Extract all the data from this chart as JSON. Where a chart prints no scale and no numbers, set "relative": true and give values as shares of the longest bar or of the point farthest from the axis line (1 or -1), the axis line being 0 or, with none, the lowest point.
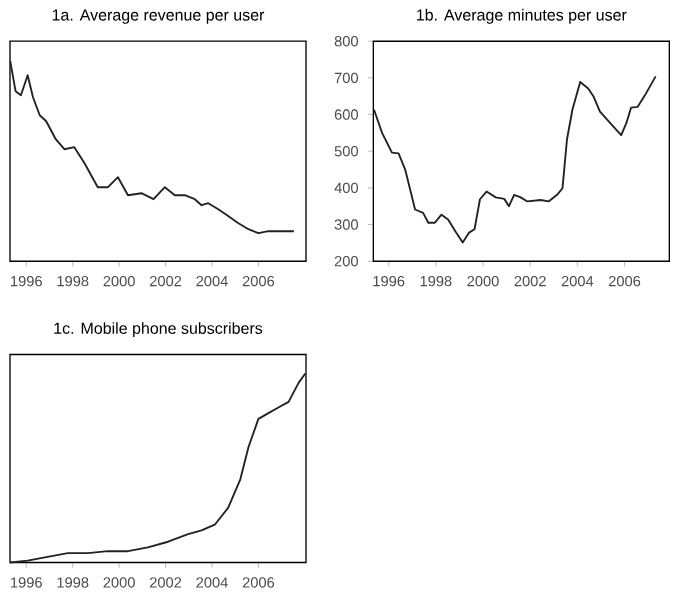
{
  "chart_data": [
    {
      "type": "line",
      "title": "1a. Average revenue per user",
      "relative": true,
      "xlim": [
        1995.3,
        2008.05
      ],
      "xticks": [
        1996,
        1998,
        2000,
        2002,
        2004,
        2006
      ],
      "x": [
        1995.31,
        1995.54,
        1995.77,
        1996.06,
        1996.29,
        1996.58,
        1996.86,
        1997.27,
        1997.64,
        1998.07,
        1998.51,
        1999.08,
        1999.52,
        1999.95,
        2000.38,
        2000.96,
        2001.48,
        2001.97,
        2002.4,
        2002.83,
        2003.26,
        2003.55,
        2003.84,
        2004.27,
        2004.65,
        2005.14,
        2005.57,
        2006.0,
        2006.43,
        2007.01,
        2007.53
      ],
      "series": [
        {
          "color": "#222222",
          "values": [
            1.0,
            0.85,
            0.83,
            0.93,
            0.82,
            0.73,
            0.7,
            0.61,
            0.56,
            0.57,
            0.49,
            0.37,
            0.37,
            0.42,
            0.33,
            0.34,
            0.31,
            0.37,
            0.33,
            0.33,
            0.31,
            0.28,
            0.29,
            0.26,
            0.23,
            0.19,
            0.16,
            0.14,
            0.15,
            0.15,
            0.15
          ]
        }
      ]
    },
    {
      "type": "line",
      "title": "1b. Average minutes per user",
      "xlim": [
        1995.35,
        2007.9
      ],
      "xticks": [
        1996,
        1998,
        2000,
        2002,
        2004,
        2006
      ],
      "ylim": [
        200,
        800
      ],
      "yticks": [
        200,
        300,
        400,
        500,
        600,
        700,
        800
      ],
      "x": [
        1995.38,
        1995.72,
        1996.14,
        1996.42,
        1996.7,
        1997.12,
        1997.46,
        1997.68,
        1997.96,
        1998.24,
        1998.52,
        1998.86,
        1999.14,
        1999.41,
        1999.64,
        1999.87,
        2000.15,
        2000.54,
        2000.9,
        2001.1,
        2001.32,
        2001.6,
        2001.88,
        2002.44,
        2002.78,
        2003.14,
        2003.37,
        2003.56,
        2003.79,
        2004.12,
        2004.46,
        2004.68,
        2004.96,
        2005.52,
        2005.86,
        2006.08,
        2006.28,
        2006.56,
        2006.87,
        2007.32
      ],
      "series": [
        {
          "color": "#222222",
          "values": [
            613,
            550,
            496,
            494,
            450,
            341,
            332,
            305,
            305,
            327,
            314,
            278,
            251,
            278,
            287,
            369,
            390,
            374,
            370,
            350,
            381,
            374,
            363,
            367,
            363,
            381,
            399,
            532,
            613,
            689,
            671,
            650,
            608,
            568,
            544,
            577,
            619,
            621,
            653,
            704
          ]
        }
      ]
    },
    {
      "type": "line",
      "title": "1c. Mobile phone subscribers",
      "relative": true,
      "xlim": [
        1995.3,
        2008.05
      ],
      "xticks": [
        1996,
        1998,
        2000,
        2002,
        2004,
        2006
      ],
      "x": [
        1995.31,
        1996.06,
        1996.92,
        1997.79,
        1998.65,
        1999.52,
        2000.38,
        2001.24,
        2002.11,
        2002.97,
        2003.55,
        2004.12,
        2004.7,
        2005.22,
        2005.57,
        2006.0,
        2006.43,
        2006.86,
        2007.3,
        2007.73,
        2008.02
      ],
      "series": [
        {
          "color": "#222222",
          "values": [
            0.0,
            0.01,
            0.03,
            0.05,
            0.05,
            0.06,
            0.06,
            0.08,
            0.11,
            0.15,
            0.17,
            0.2,
            0.29,
            0.44,
            0.61,
            0.76,
            0.79,
            0.82,
            0.85,
            0.95,
            1.0
          ]
        }
      ]
    }
  ]
}
